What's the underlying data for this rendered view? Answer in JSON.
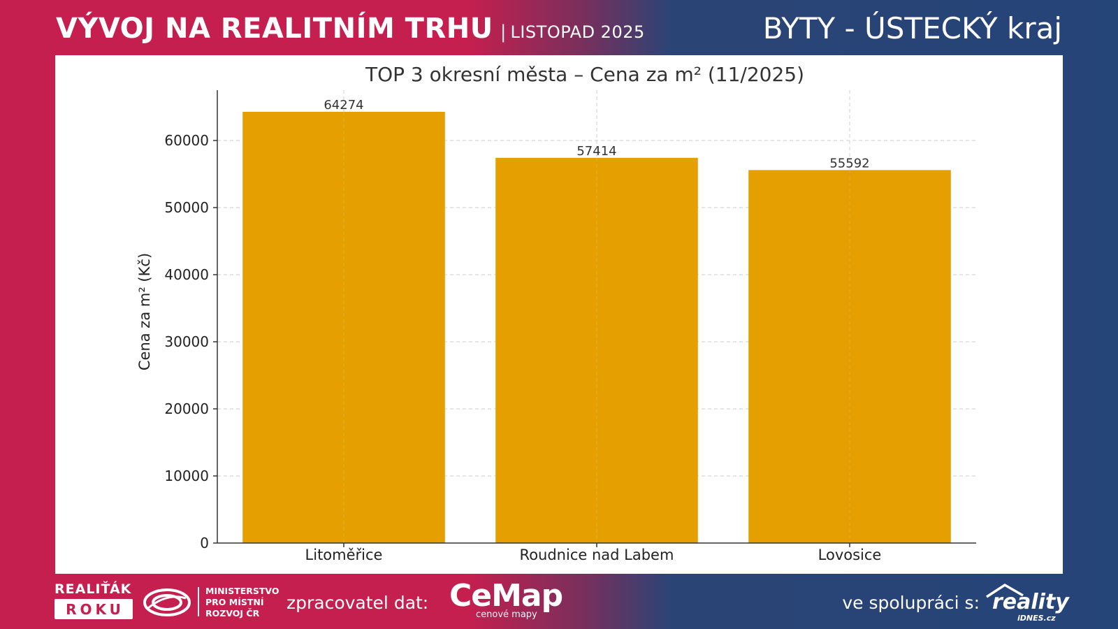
{
  "header": {
    "title": "VÝVOJ NA REALITNÍM TRHU",
    "separator": "|",
    "date": "LISTOPAD 2025",
    "region": "BYTY - ÚSTECKÝ kraj"
  },
  "chart_data": {
    "type": "bar",
    "title": "TOP 3 okresní města – Cena za m² (11/2025)",
    "xlabel": "",
    "ylabel": "Cena za m² (Kč)",
    "categories": [
      "Litoměřice",
      "Roudnice nad Labem",
      "Lovosice"
    ],
    "values": [
      64274,
      57414,
      55592
    ],
    "ylim": [
      0,
      67500
    ],
    "yticks": [
      0,
      10000,
      20000,
      30000,
      40000,
      50000,
      60000
    ],
    "grid": true,
    "bar_color": "#e5a000",
    "data_labels": true
  },
  "footer": {
    "realitak_top": "REALIŤÁK",
    "realitak_bottom": "ROKU",
    "ministry_line1": "MINISTERSTVO",
    "ministry_line2": "PRO MÍSTNÍ",
    "ministry_line3": "ROZVOJ ČR",
    "processor_label": "zpracovatel dat:",
    "cemap_name": "CeMap",
    "cemap_sub": "cenové mapy",
    "collab_label": "ve spolupráci s:",
    "reality_name": "reality",
    "reality_sub": "iDNES.cz"
  },
  "colors": {
    "red": "#c41f4f",
    "blue": "#254478",
    "bar": "#e5a000"
  }
}
